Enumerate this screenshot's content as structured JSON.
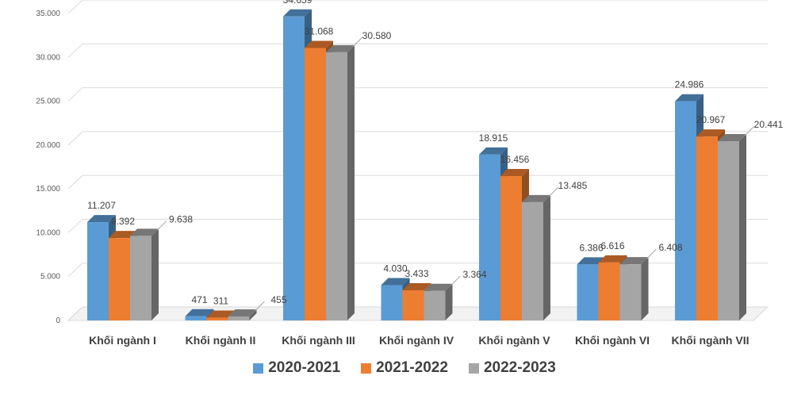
{
  "chart_data": {
    "type": "bar",
    "title": "",
    "xlabel": "",
    "ylabel": "",
    "ylim": [
      0,
      35000
    ],
    "yticks": [
      "0",
      "5.000",
      "10.000",
      "15.000",
      "20.000",
      "25.000",
      "30.000",
      "35.000"
    ],
    "grid": true,
    "legend_position": "bottom",
    "categories": [
      "Khối ngành I",
      "Khối ngành II",
      "Khối ngành III",
      "Khối ngành IV",
      "Khối ngành V",
      "Khối ngành VI",
      "Khối ngành VII"
    ],
    "series": [
      {
        "name": "2020-2021",
        "color": "#5B9BD5",
        "values": [
          11207,
          471,
          34659,
          4030,
          18915,
          6386,
          24986
        ],
        "labels": [
          "11.207",
          "471",
          "34.659",
          "4.030",
          "18.915",
          "6.386",
          "24.986"
        ]
      },
      {
        "name": "2021-2022",
        "color": "#ED7D31",
        "values": [
          9392,
          311,
          31068,
          3433,
          16456,
          6616,
          20967
        ],
        "labels": [
          "9.392",
          "311",
          "31.068",
          "3.433",
          "16.456",
          "6.616",
          "20.967"
        ]
      },
      {
        "name": "2022-2023",
        "color": "#A5A5A5",
        "values": [
          9638,
          455,
          30580,
          3364,
          13485,
          6408,
          20441
        ],
        "labels": [
          "9.638",
          "455",
          "30.580",
          "3.364",
          "13.485",
          "6.408",
          "20.441"
        ]
      }
    ]
  }
}
